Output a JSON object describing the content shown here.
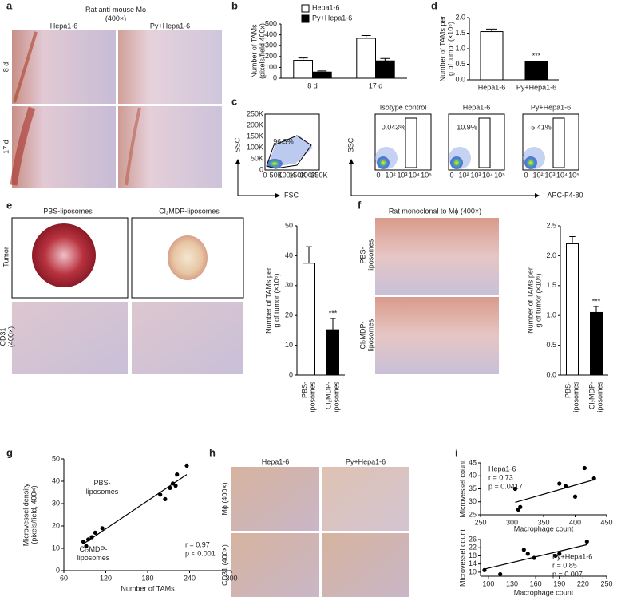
{
  "figure": {
    "panel_letters": [
      "a",
      "b",
      "c",
      "d",
      "e",
      "f",
      "g",
      "h",
      "i"
    ],
    "panel_a": {
      "title": [
        "Rat anti-mouse Mϕ",
        "(400×)"
      ],
      "columns": [
        "Hepa1-6",
        "Py+Hepa1-6"
      ],
      "rows": [
        "8 d",
        "17 d"
      ]
    },
    "panel_c": {
      "scatter_plot": {
        "yticks": [
          "250K",
          "200K",
          "150K",
          "100K",
          "50K",
          "0"
        ],
        "xticks": [
          "0",
          "50K",
          "100K",
          "150K",
          "200K",
          "250K"
        ],
        "gate": "96.5%",
        "ylabel": "SSC",
        "xlabel": "FSC"
      },
      "fluor_plots": {
        "titles": [
          "Isotype control",
          "Hepa1-6",
          "Py+Hepa1-6"
        ],
        "gates": [
          "0.043%",
          "10.9%",
          "5.41%"
        ],
        "xticks": [
          "0",
          "10²",
          "10³",
          "10⁴",
          "10⁵"
        ],
        "ylabel": "SSC",
        "xlabel": "APC-F4-80"
      }
    },
    "panel_e": {
      "columns": [
        "PBS-liposomes",
        "Cl₂MDP-liposomes"
      ],
      "rows": [
        "Tumor",
        [
          "CD31",
          "(400×)"
        ]
      ]
    },
    "panel_f": {
      "title": "Rat monoclonal to Mϕ (400×)",
      "rows": [
        [
          "PBS-",
          "liposomes"
        ],
        [
          "Cl₂MDP-",
          "liposomes"
        ]
      ]
    },
    "panel_h": {
      "columns": [
        "Hepa1-6",
        "Py+Hepa1-6"
      ],
      "rows": [
        "Mϕ (400×)",
        "CD31 (400×)"
      ]
    }
  },
  "chart_data": [
    {
      "type": "bar",
      "ylabel": [
        "Number of TAMs",
        "(pixels/field 400x)"
      ],
      "categories": [
        "8 d",
        "17 d"
      ],
      "series": [
        {
          "name": "Hepa1-6",
          "color": "#ffffff",
          "values": [
            165,
            368
          ],
          "errors": [
            22,
            25
          ]
        },
        {
          "name": "Py+Hepa1-6",
          "color": "#000000",
          "values": [
            57,
            160
          ],
          "errors": [
            10,
            22
          ]
        }
      ],
      "ylim": [
        0,
        500
      ],
      "yticks": [
        0,
        100,
        200,
        300,
        400,
        500
      ]
    },
    {
      "type": "bar",
      "ylabel": [
        "Number of TAMs per",
        "g of tumor (×10⁶)"
      ],
      "categories": [
        "Hepa1-6",
        "Py+Hepa1-6"
      ],
      "values": [
        1.55,
        0.58
      ],
      "errors": [
        0.08,
        0.02
      ],
      "colors": [
        "#ffffff",
        "#000000"
      ],
      "significance": [
        null,
        "***"
      ],
      "ylim": [
        0,
        2
      ],
      "yticks": [
        {
          "value": 0,
          "label": "0.0"
        },
        0.5,
        {
          "value": 1,
          "label": "1.0"
        },
        1.5,
        {
          "value": 2,
          "label": "2.0"
        }
      ]
    },
    {
      "type": "bar",
      "ylabel": [
        "Number of TAMs per",
        "g of tumor (×10⁶)"
      ],
      "categories": [
        [
          "PBS-",
          "liposomes"
        ],
        [
          "Cl₂MDP-",
          "liposomes"
        ]
      ],
      "values": [
        37.5,
        15.2
      ],
      "errors": [
        5.5,
        3.8
      ],
      "colors": [
        "#ffffff",
        "#000000"
      ],
      "significance": [
        null,
        "***"
      ],
      "ylim": [
        0,
        50
      ],
      "yticks": [
        0,
        10,
        20,
        30,
        40,
        50
      ]
    },
    {
      "type": "bar",
      "ylabel": [
        "Number of TAMs per",
        "g of tumor (×10⁶)"
      ],
      "categories": [
        [
          "PBS-",
          "liposomes"
        ],
        [
          "Cl₂MDP-",
          "liposomes"
        ]
      ],
      "values": [
        2.2,
        1.05
      ],
      "errors": [
        0.12,
        0.1
      ],
      "colors": [
        "#ffffff",
        "#000000"
      ],
      "significance": [
        null,
        "***"
      ],
      "ylim": [
        0,
        2.5
      ],
      "yticks": [
        {
          "value": 0,
          "label": "0.0"
        },
        0.5,
        {
          "value": 1,
          "label": "1.0"
        },
        1.5,
        {
          "value": 2,
          "label": "2.0"
        },
        2.5
      ]
    },
    {
      "type": "scatter",
      "xlabel": "Number of TAMs",
      "ylabel": [
        "Microvessel density",
        "(pixels/field, 400×)"
      ],
      "x": [
        88,
        92,
        95,
        100,
        105,
        115,
        198,
        205,
        212,
        216,
        220,
        222,
        236
      ],
      "y": [
        13,
        11,
        14,
        15,
        17,
        19,
        34,
        32,
        37,
        39,
        38,
        43,
        47
      ],
      "fit": {
        "x": [
          88,
          236
        ],
        "y": [
          12,
          43
        ]
      },
      "annotations": [
        "r = 0.97",
        "p < 0.001"
      ],
      "group_labels": [
        [
          "PBS-",
          "liposomes"
        ],
        [
          "Cl₂MDP-",
          "liposomes"
        ]
      ],
      "xlim": [
        60,
        300
      ],
      "xticks": [
        60,
        120,
        180,
        240,
        300
      ],
      "ylim": [
        0,
        50
      ],
      "yticks": [
        0,
        10,
        20,
        30,
        40,
        50
      ]
    },
    {
      "type": "scatter",
      "xlabel": "Macrophage count",
      "ylabel": "Microvessel count",
      "x": [
        305,
        310,
        313,
        375,
        385,
        400,
        415,
        430
      ],
      "y": [
        35,
        27,
        28,
        37,
        36,
        32,
        43,
        39
      ],
      "fit": {
        "x": [
          305,
          430
        ],
        "y": [
          29.8,
          38.5
        ]
      },
      "annotations": [
        "Hepa1-6",
        "r = 0.73",
        "p = 0.0417"
      ],
      "xlim": [
        250,
        450
      ],
      "xticks": [
        250,
        300,
        350,
        400,
        450
      ],
      "ylim": [
        25,
        45
      ],
      "yticks": [
        25,
        30,
        35,
        40,
        45
      ]
    },
    {
      "type": "scatter",
      "xlabel": "Macrophage count",
      "ylabel": "Microvessel count",
      "x": [
        95,
        115,
        145,
        150,
        158,
        185,
        190,
        225
      ],
      "y": [
        11,
        9,
        21,
        19,
        17,
        18,
        19,
        25
      ],
      "fit": {
        "x": [
          95,
          225
        ],
        "y": [
          11.5,
          23.5
        ]
      },
      "annotations": [
        "Py+Hepa1-6",
        "r = 0.85",
        "p = 0.007"
      ],
      "xlim": [
        90,
        250
      ],
      "xticks": [
        100,
        130,
        160,
        190,
        220,
        250
      ],
      "ylim": [
        8,
        26
      ],
      "yticks": [
        10,
        14,
        18,
        22,
        26
      ]
    }
  ]
}
